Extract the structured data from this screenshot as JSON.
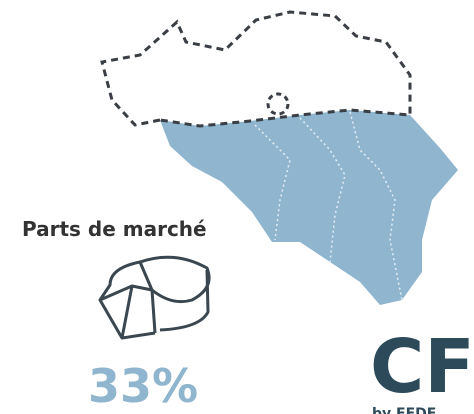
{
  "label": "Parts de marché",
  "share": "33%",
  "logo": {
    "text": "CF",
    "tagline": "by FEDE"
  }
}
